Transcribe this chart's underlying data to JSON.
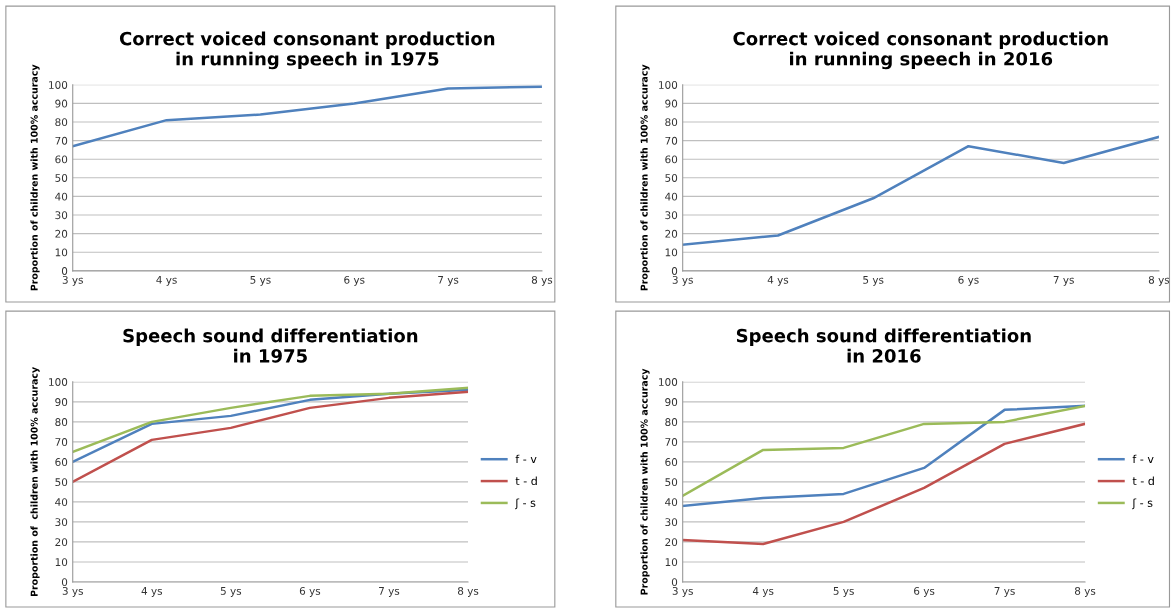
{
  "chart_data": [
    {
      "type": "line",
      "title": "Correct voiced consonant production\nin running speech in 1975",
      "ylabel": "Proportion of children with 100% accuracy",
      "categories": [
        "3 ys",
        "4 ys",
        "5 ys",
        "6 ys",
        "7 ys",
        "8 ys"
      ],
      "ylim": [
        0,
        100
      ],
      "yticks": [
        0,
        10,
        20,
        30,
        40,
        50,
        60,
        70,
        80,
        90,
        100
      ],
      "grid": "y",
      "legend": false,
      "series": [
        {
          "color": "#4f81bd",
          "values": [
            67,
            81,
            84,
            90,
            98,
            99
          ]
        }
      ]
    },
    {
      "type": "line",
      "title": "Correct voiced consonant production\nin running speech in 2016",
      "ylabel": "Proportion of children with 100% accuracy",
      "categories": [
        "3 ys",
        "4 ys",
        "5 ys",
        "6 ys",
        "7 ys",
        "8 ys"
      ],
      "ylim": [
        0,
        100
      ],
      "yticks": [
        0,
        10,
        20,
        30,
        40,
        50,
        60,
        70,
        80,
        90,
        100
      ],
      "grid": "y",
      "legend": false,
      "series": [
        {
          "color": "#4f81bd",
          "values": [
            14,
            19,
            39,
            67,
            58,
            72
          ]
        }
      ]
    },
    {
      "type": "line",
      "title": "Speech sound differentiation\nin 1975",
      "ylabel": "Proportion of  children with 100% accuracy",
      "categories": [
        "3 ys",
        "4 ys",
        "5 ys",
        "6 ys",
        "7 ys",
        "8 ys"
      ],
      "ylim": [
        0,
        100
      ],
      "yticks": [
        0,
        10,
        20,
        30,
        40,
        50,
        60,
        70,
        80,
        90,
        100
      ],
      "grid": "y",
      "legend": "right",
      "series": [
        {
          "name": "f - v",
          "color": "#4f81bd",
          "values": [
            60,
            79,
            83,
            91,
            94,
            96
          ]
        },
        {
          "name": "t - d",
          "color": "#c0504d",
          "values": [
            50,
            71,
            77,
            87,
            92,
            95
          ]
        },
        {
          "name": "ʃ - s",
          "color": "#9bbb59",
          "values": [
            65,
            80,
            87,
            93,
            94,
            97
          ]
        }
      ]
    },
    {
      "type": "line",
      "title": "Speech sound differentiation\nin 2016",
      "ylabel": "Proportion of children with 100% accuracy",
      "categories": [
        "3 ys",
        "4 ys",
        "5 ys",
        "6 ys",
        "7 ys",
        "8 ys"
      ],
      "ylim": [
        0,
        100
      ],
      "yticks": [
        0,
        10,
        20,
        30,
        40,
        50,
        60,
        70,
        80,
        90,
        100
      ],
      "grid": "y",
      "legend": "right",
      "series": [
        {
          "name": "f - v",
          "color": "#4f81bd",
          "values": [
            38,
            42,
            44,
            57,
            86,
            88
          ]
        },
        {
          "name": "t - d",
          "color": "#c0504d",
          "values": [
            21,
            19,
            30,
            47,
            69,
            79
          ]
        },
        {
          "name": "ʃ - s",
          "color": "#9bbb59",
          "values": [
            43,
            66,
            67,
            79,
            80,
            88
          ]
        }
      ]
    }
  ]
}
